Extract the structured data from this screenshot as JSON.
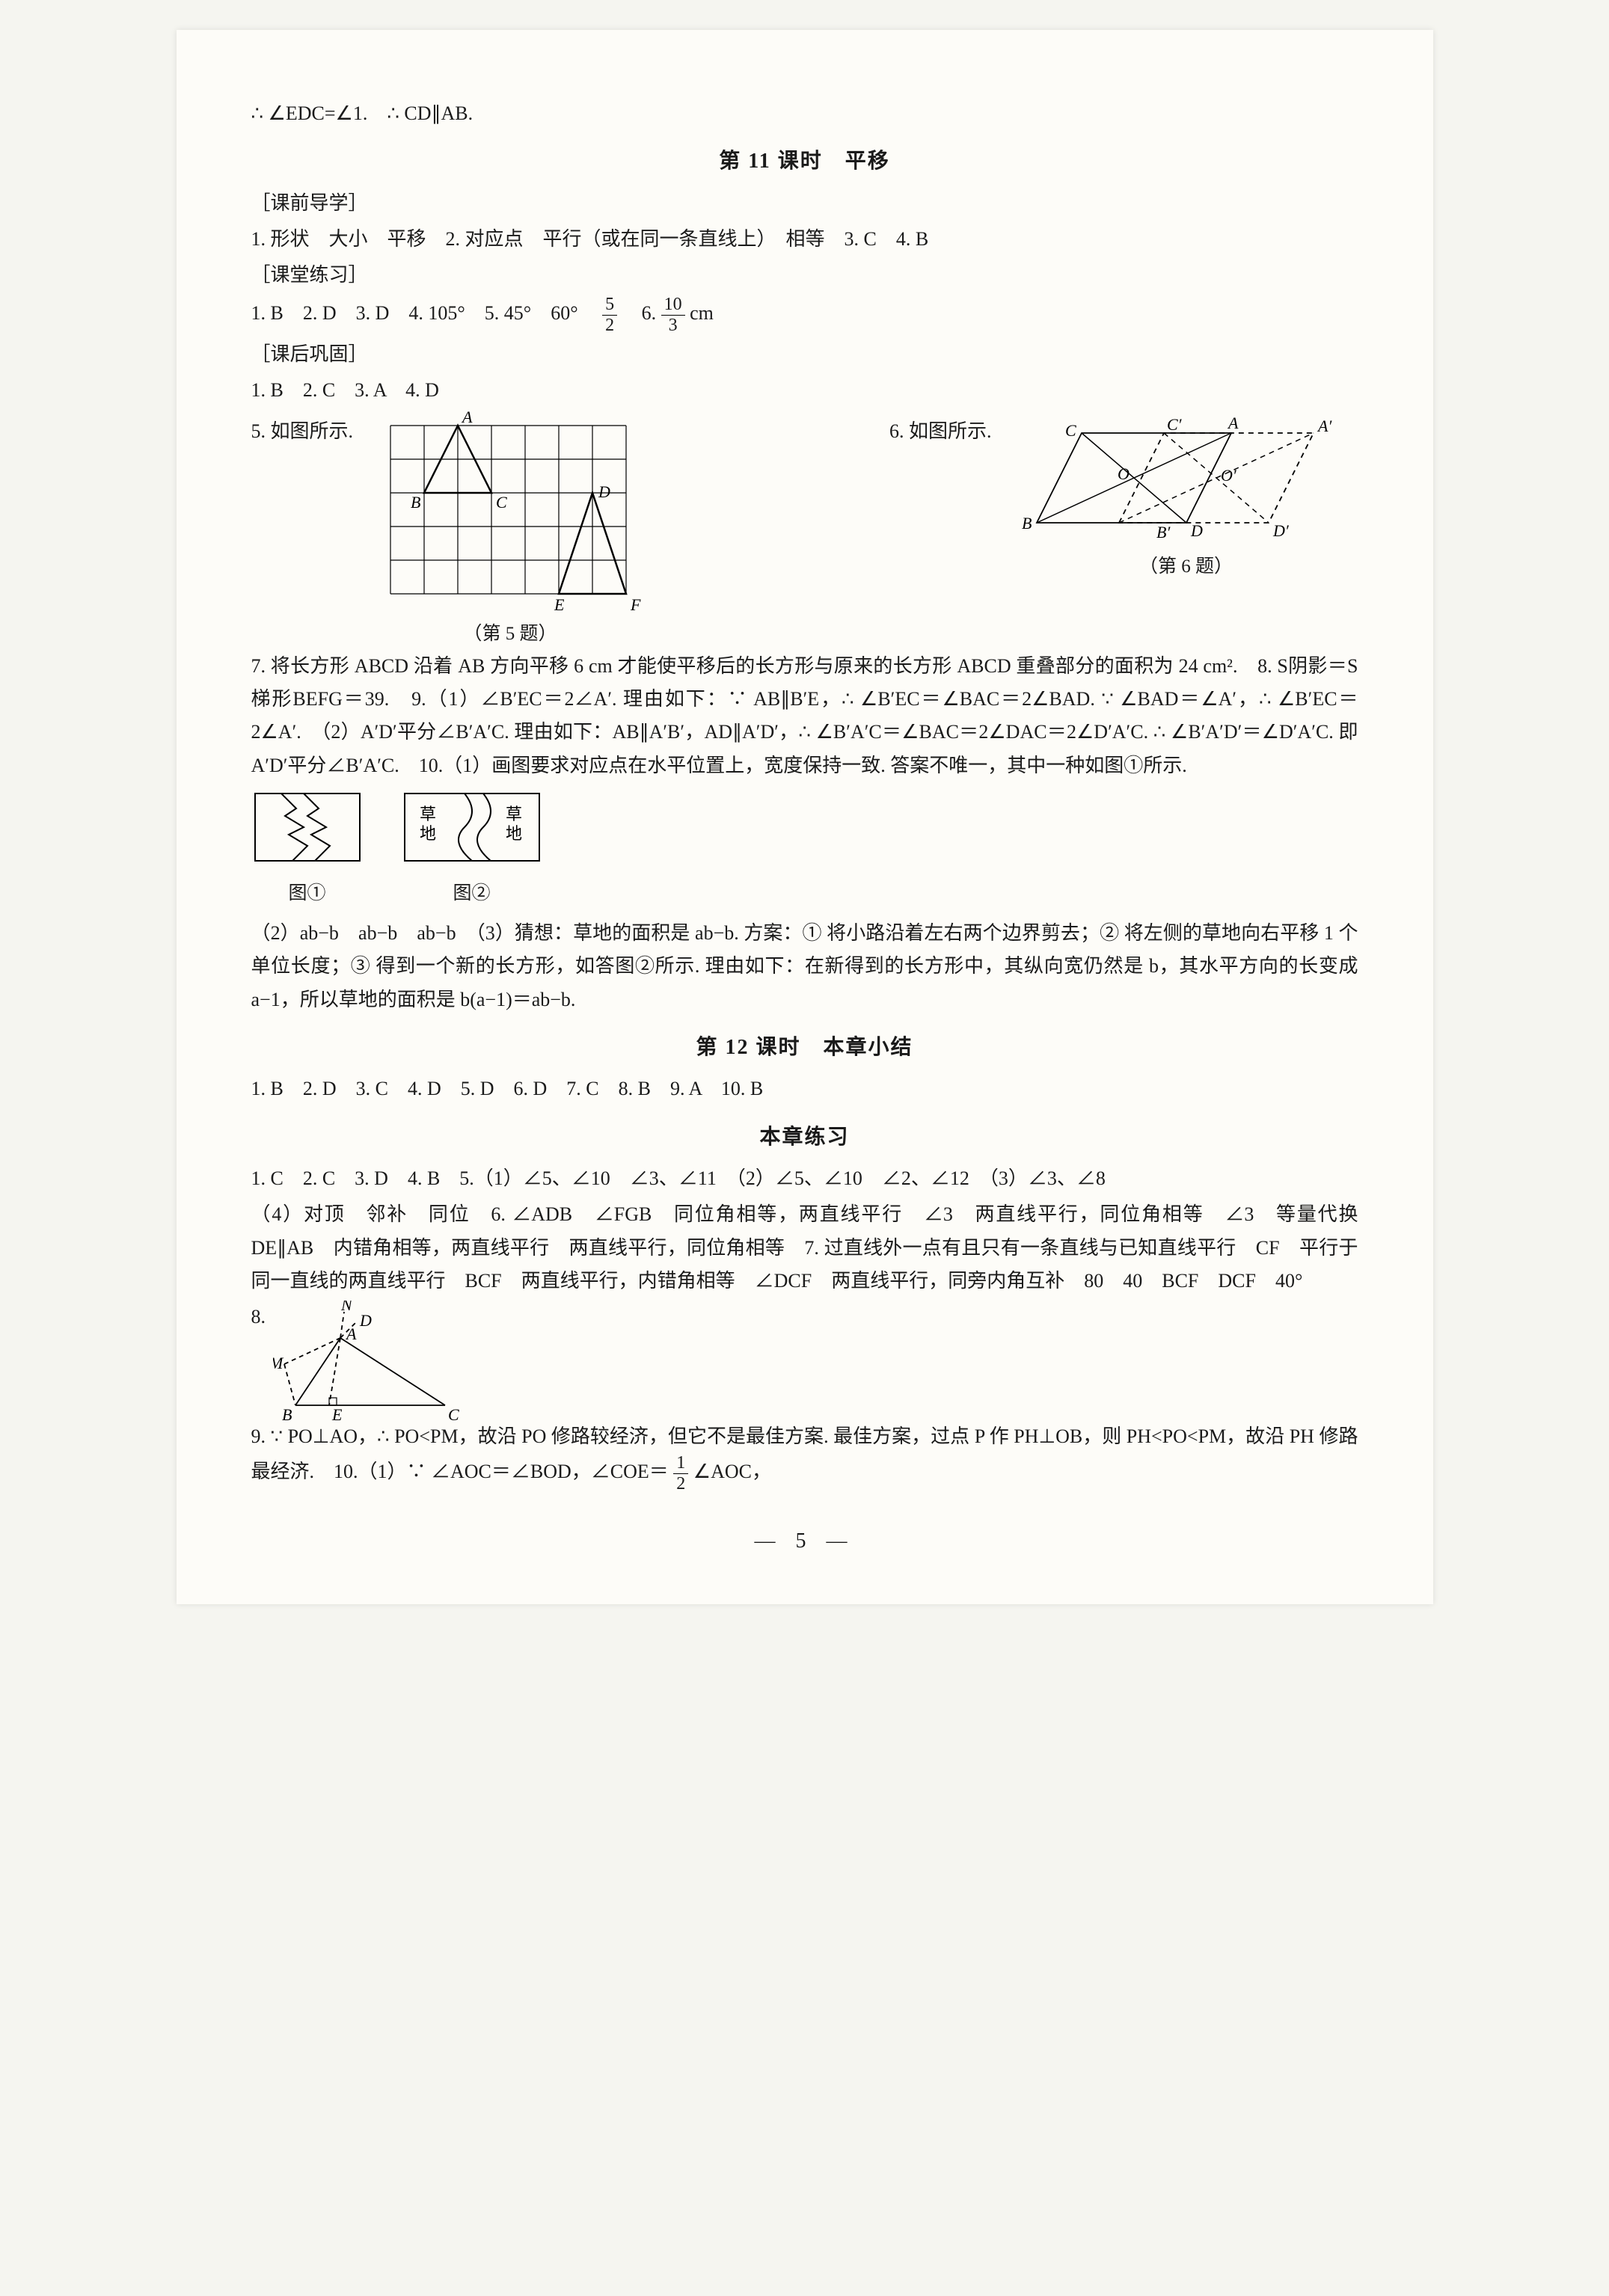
{
  "top_line": "∴ ∠EDC=∠1.　∴ CD∥AB.",
  "lesson11_title": "第 11 课时　平移",
  "keqian_label": "［课前导学］",
  "keqian_1": "1. 形状　大小　平移　2. 对应点　平行（或在同一条直线上）　相等　3. C　4. B",
  "ketang_label": "［课堂练习］",
  "ketang_1": {
    "prefix": "1. B　2. D　3. D　4. 105°　5. 45°　60°　",
    "frac1_num": "5",
    "frac1_den": "2",
    "mid": "　6. ",
    "frac2_num": "10",
    "frac2_den": "3",
    "suffix": "cm"
  },
  "kehou_label": "［课后巩固］",
  "kehou_1": "1. B　2. C　3. A　4. D",
  "kehou_5_prefix": "5. 如图所示.",
  "kehou_6_prefix": "6. 如图所示.",
  "fig5_caption": "（第 5 题）",
  "fig6_caption": "（第 6 题）",
  "fig5": {
    "cols": 7,
    "rows": 5,
    "cell": 45,
    "stroke": "#000",
    "thin": "#666",
    "labels": {
      "A": "A",
      "B": "B",
      "C": "C",
      "D": "D",
      "E": "E",
      "F": "F"
    },
    "tri1": [
      [
        2,
        0
      ],
      [
        1,
        2
      ],
      [
        3,
        2
      ]
    ],
    "tri2": [
      [
        6,
        2
      ],
      [
        5,
        5
      ],
      [
        7,
        5
      ]
    ]
  },
  "fig6": {
    "labels": {
      "A": "A",
      "Ap": "A′",
      "B": "B",
      "Bp": "B′",
      "C": "C",
      "Cp": "C′",
      "D": "D",
      "Dp": "D′",
      "O": "O",
      "Op": "O′"
    },
    "stroke": "#000"
  },
  "para7": "7. 将长方形 ABCD 沿着 AB 方向平移 6 cm 才能使平移后的长方形与原来的长方形 ABCD 重叠部分的面积为 24 cm².　8. S阴影＝S梯形BEFG＝39.　9.（1）∠B′EC＝2∠A′. 理由如下：∵ AB∥B′E，∴ ∠B′EC＝∠BAC＝2∠BAD. ∵ ∠BAD＝∠A′，∴ ∠B′EC＝2∠A′.　（2）A′D′平分∠B′A′C. 理由如下：AB∥A′B′，AD∥A′D′，∴ ∠B′A′C＝∠BAC＝2∠DAC＝2∠D′A′C. ∴ ∠B′A′D′＝∠D′A′C. 即 A′D′平分∠B′A′C.　10.（1）画图要求对应点在水平位置上，宽度保持一致. 答案不唯一，其中一种如图①所示.",
  "fig_tu1_caption": "图①",
  "fig_tu2_caption": "图②",
  "fig_tu2_left": "草地",
  "fig_tu2_right": "草地",
  "para7b": "（2）ab−b　ab−b　ab−b　（3）猜想：草地的面积是 ab−b. 方案：① 将小路沿着左右两个边界剪去；② 将左侧的草地向右平移 1 个单位长度；③ 得到一个新的长方形，如答图②所示. 理由如下：在新得到的长方形中，其纵向宽仍然是 b，其水平方向的长变成 a−1，所以草地的面积是 b(a−1)＝ab−b.",
  "lesson12_title": "第 12 课时　本章小结",
  "lesson12_ans": "1. B　2. D　3. C　4. D　5. D　6. D　7. C　8. B　9. A　10. B",
  "chapter_ex_title": "本章练习",
  "chap_line1": "1. C　2. C　3. D　4. B　5.（1）∠5、∠10　∠3、∠11　（2）∠5、∠10　∠2、∠12　（3）∠3、∠8",
  "chap_line2": "（4）对顶　邻补　同位　6. ∠ADB　∠FGB　同位角相等，两直线平行　∠3　两直线平行，同位角相等　∠3　等量代换　DE∥AB　内错角相等，两直线平行　两直线平行，同位角相等　7. 过直线外一点有且只有一条直线与已知直线平行　CF　平行于同一直线的两直线平行　BCF　两直线平行，内错角相等　∠DCF　两直线平行，同旁内角互补　80　40　BCF　DCF　40°",
  "chap8_label": "8.",
  "fig8_labels": {
    "A": "A",
    "B": "B",
    "C": "C",
    "D": "D",
    "E": "E",
    "M": "M",
    "N": "N"
  },
  "para9_prefix": "9. ∵ PO⊥AO，∴ PO<PM，故沿 PO 修路较经济，但它不是最佳方案. 最佳方案，过点 P 作 PH⊥OB，则 PH<PO<PM，故沿 PH 修路最经济.　10.（1）∵ ∠AOC＝∠BOD，∠COE＝",
  "para9_frac_num": "1",
  "para9_frac_den": "2",
  "para9_suffix": "∠AOC，",
  "page_number": "— 5 —"
}
